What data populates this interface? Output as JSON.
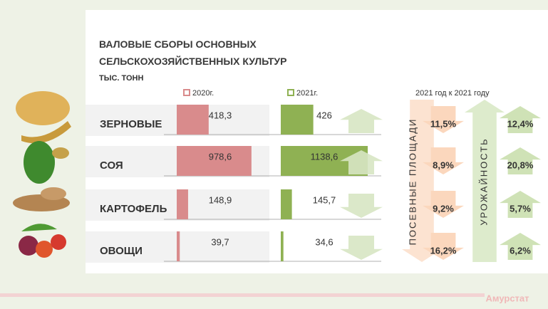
{
  "chart_data": {
    "type": "bar",
    "title": "ВАЛОВЫЕ СБОРЫ ОСНОВНЫХ СЕЛЬСКОХОЗЯЙСТВЕННЫХ  КУЛЬТУР",
    "unit": "ТЫС. ТОНН",
    "categories": [
      "ЗЕРНОВЫЕ",
      "СОЯ",
      "КАРТОФЕЛЬ",
      "ОВОЩИ"
    ],
    "series": [
      {
        "name": "2020г.",
        "color": "#d98b8c",
        "values": [
          418.3,
          978.6,
          148.9,
          39.7
        ],
        "value_labels": [
          "418,3",
          "978,6",
          "148,9",
          "39,7"
        ]
      },
      {
        "name": "2021г.",
        "color": "#8fb153",
        "values": [
          426,
          1138.6,
          145.7,
          34.6
        ],
        "value_labels": [
          "426",
          "1138,6",
          "145,7",
          "34,6"
        ]
      }
    ],
    "comparison_header": "2021 год  к  2021 году",
    "sown_area": {
      "label": "ПОСЕВНЫЕ ПЛОЩАДИ",
      "trend": "down",
      "color": "#fbd7bd",
      "values": [
        11.5,
        8.9,
        9.2,
        16.2
      ],
      "value_labels": [
        "11,5%",
        "8,9%",
        "9,2%",
        "16,2%"
      ]
    },
    "yield": {
      "label": "УРОЖАЙНОСТЬ",
      "trend": "up",
      "color": "#cfe2b6",
      "values": [
        12.4,
        20.8,
        5.7,
        6.2
      ],
      "value_labels": [
        "12,4%",
        "20,8%",
        "5,7%",
        "6,2%"
      ]
    },
    "source": "Амурстат"
  }
}
